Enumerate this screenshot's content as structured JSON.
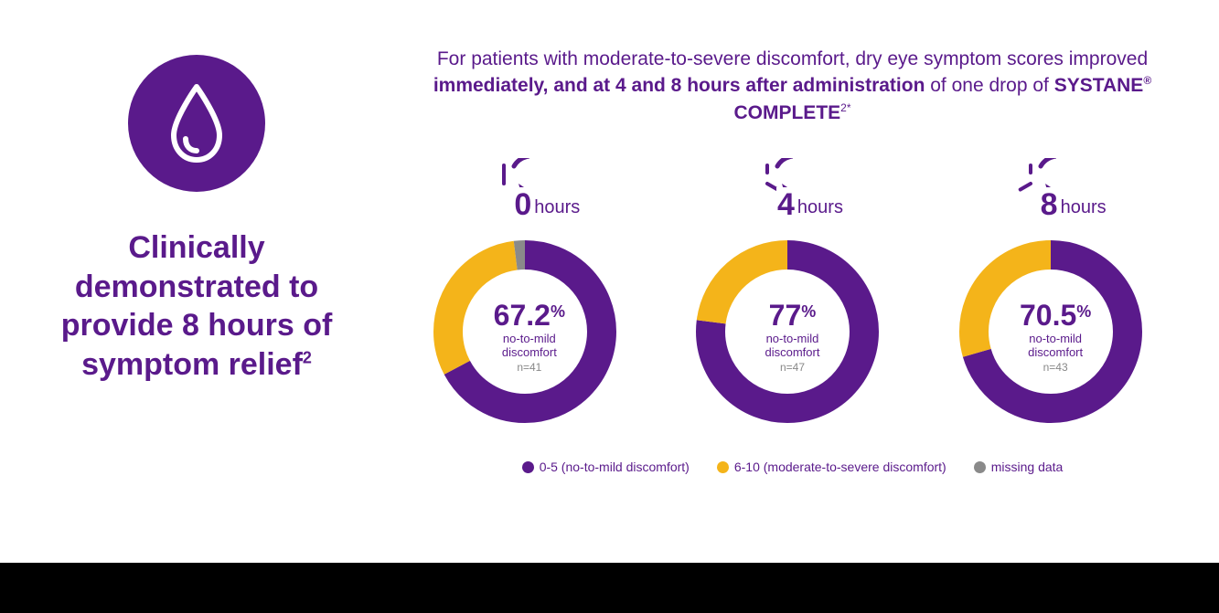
{
  "colors": {
    "purple": "#5a1a8b",
    "yellow": "#f4b41a",
    "gray": "#8a8a8a",
    "white": "#ffffff"
  },
  "left": {
    "headline_html": "Clinically demonstrated to provide 8 hours of symptom relief<sup>2</sup>"
  },
  "intro": {
    "text_html": "For patients with moderate-to-severe discomfort, dry eye symptom scores improved <strong>immediately, and at 4 and 8 hours after administration</strong> of one drop of <span class='brand'>SYSTANE<sup>®</sup> COMPLETE</span><sup>2*</sup>"
  },
  "charts": [
    {
      "hour_label": "0",
      "unit": "hours",
      "clock_hour_angle": 0,
      "percent_display": "67.2",
      "desc_line1": "no-to-mild",
      "desc_line2": "discomfort",
      "n": "n=41",
      "segments": [
        {
          "value": 67.2,
          "color": "#5a1a8b"
        },
        {
          "value": 30.8,
          "color": "#f4b41a"
        },
        {
          "value": 2.0,
          "color": "#8a8a8a"
        }
      ]
    },
    {
      "hour_label": "4",
      "unit": "hours",
      "clock_hour_angle": 120,
      "percent_display": "77",
      "desc_line1": "no-to-mild",
      "desc_line2": "discomfort",
      "n": "n=47",
      "segments": [
        {
          "value": 77,
          "color": "#5a1a8b"
        },
        {
          "value": 23,
          "color": "#f4b41a"
        }
      ]
    },
    {
      "hour_label": "8",
      "unit": "hours",
      "clock_hour_angle": 240,
      "percent_display": "70.5",
      "desc_line1": "no-to-mild",
      "desc_line2": "discomfort",
      "n": "n=43",
      "segments": [
        {
          "value": 70.5,
          "color": "#5a1a8b"
        },
        {
          "value": 29.5,
          "color": "#f4b41a"
        }
      ]
    }
  ],
  "legend": [
    {
      "color": "#5a1a8b",
      "label": "0-5 (no-to-mild discomfort)"
    },
    {
      "color": "#f4b41a",
      "label": "6-10 (moderate-to-severe discomfort)"
    },
    {
      "color": "#8a8a8a",
      "label": "missing data"
    }
  ],
  "donut_style": {
    "outer_r": 100,
    "stroke_width": 32
  }
}
